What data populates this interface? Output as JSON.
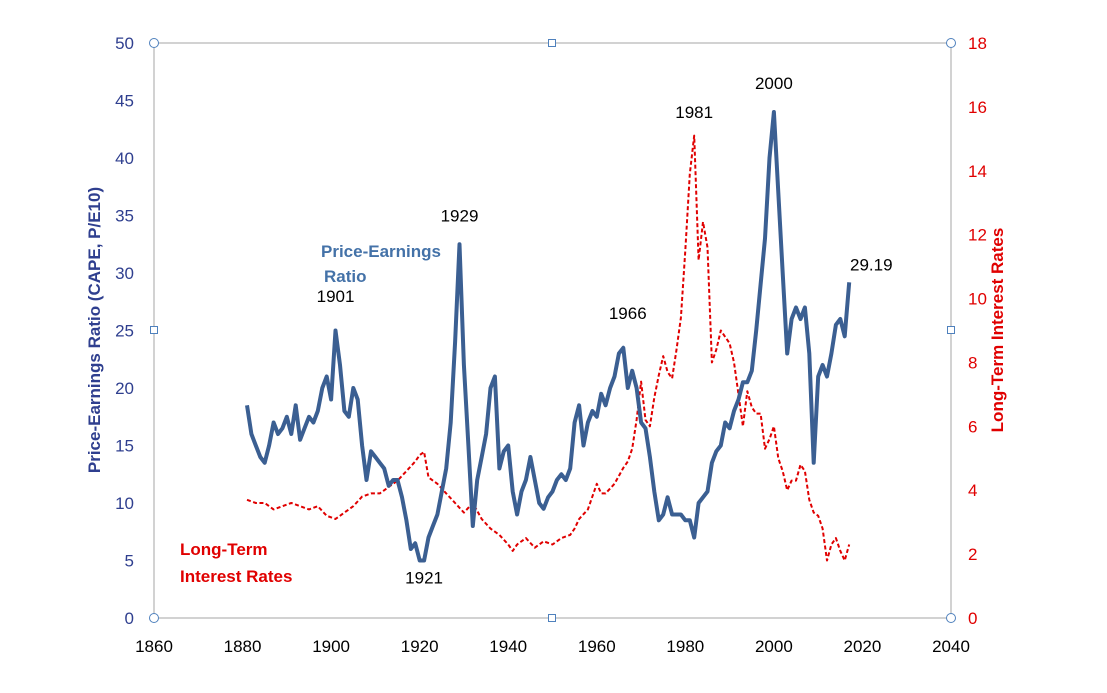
{
  "chart_data": {
    "type": "line",
    "xlim": [
      1860,
      2040
    ],
    "x_ticks": [
      1860,
      1880,
      1900,
      1920,
      1940,
      1960,
      1980,
      2000,
      2020,
      2040
    ],
    "y_left": {
      "label": "Price-Earnings Ratio (CAPE, P/E10)",
      "range": [
        0,
        50
      ],
      "ticks": [
        0,
        5,
        10,
        15,
        20,
        25,
        30,
        35,
        40,
        45,
        50
      ],
      "color": "#2f3f8f"
    },
    "y_right": {
      "label": "Long-Term Interest Rates",
      "range": [
        0,
        18
      ],
      "ticks": [
        0,
        2,
        4,
        6,
        8,
        10,
        12,
        14,
        16,
        18
      ],
      "color": "#e00000"
    },
    "grid": false,
    "series": [
      {
        "name": "Price-Earnings Ratio",
        "axis": "left",
        "color": "#3b5f92",
        "style": "solid",
        "x": [
          1881,
          1882,
          1883,
          1884,
          1885,
          1886,
          1887,
          1888,
          1889,
          1890,
          1891,
          1892,
          1893,
          1894,
          1895,
          1896,
          1897,
          1898,
          1899,
          1900,
          1901,
          1902,
          1903,
          1904,
          1905,
          1906,
          1907,
          1908,
          1909,
          1910,
          1911,
          1912,
          1913,
          1914,
          1915,
          1916,
          1917,
          1918,
          1919,
          1920,
          1921,
          1922,
          1923,
          1924,
          1925,
          1926,
          1927,
          1928,
          1929,
          1930,
          1931,
          1932,
          1933,
          1934,
          1935,
          1936,
          1937,
          1938,
          1939,
          1940,
          1941,
          1942,
          1943,
          1944,
          1945,
          1946,
          1947,
          1948,
          1949,
          1950,
          1951,
          1952,
          1953,
          1954,
          1955,
          1956,
          1957,
          1958,
          1959,
          1960,
          1961,
          1962,
          1963,
          1964,
          1965,
          1966,
          1967,
          1968,
          1969,
          1970,
          1971,
          1972,
          1973,
          1974,
          1975,
          1976,
          1977,
          1978,
          1979,
          1980,
          1981,
          1982,
          1983,
          1984,
          1985,
          1986,
          1987,
          1988,
          1989,
          1990,
          1991,
          1992,
          1993,
          1994,
          1995,
          1996,
          1997,
          1998,
          1999,
          2000,
          2001,
          2002,
          2003,
          2004,
          2005,
          2006,
          2007,
          2008,
          2009,
          2010,
          2011,
          2012,
          2013,
          2014,
          2015,
          2016,
          2017
        ],
        "values": [
          18.5,
          16,
          15,
          14,
          13.5,
          15,
          17,
          16,
          16.5,
          17.5,
          16,
          18.5,
          15.5,
          16.5,
          17.5,
          17,
          18,
          20,
          21,
          19,
          25,
          22,
          18,
          17.5,
          20,
          19,
          15,
          12,
          14.5,
          14,
          13.5,
          13,
          11.5,
          12,
          12,
          10.5,
          8.5,
          6,
          6.5,
          5,
          5,
          7,
          8,
          9,
          11,
          13,
          17,
          24,
          32.5,
          22,
          15,
          8,
          12,
          14,
          16,
          20,
          21,
          13,
          14.5,
          15,
          11,
          9,
          11,
          12,
          14,
          12,
          10,
          9.5,
          10.5,
          11,
          12,
          12.5,
          12,
          13,
          17,
          18.5,
          15,
          17,
          18,
          17.5,
          19.5,
          18.5,
          20,
          21,
          23,
          23.5,
          20,
          21.5,
          20,
          17,
          16.5,
          14,
          11,
          8.5,
          9,
          10.5,
          9,
          9,
          9,
          8.5,
          8.5,
          7,
          10,
          10.5,
          11,
          13.5,
          14.5,
          15,
          17,
          16.5,
          18,
          19,
          20.5,
          20.5,
          21.5,
          25,
          29,
          33,
          40,
          44,
          37,
          30,
          23,
          26,
          27,
          26,
          27,
          23,
          13.5,
          21,
          22,
          21,
          23,
          25.5,
          26,
          24.5,
          29.19
        ]
      },
      {
        "name": "Long-Term Interest Rates",
        "axis": "right",
        "color": "#e00000",
        "style": "dashed",
        "x": [
          1881,
          1883,
          1885,
          1887,
          1889,
          1891,
          1893,
          1895,
          1897,
          1899,
          1901,
          1903,
          1905,
          1907,
          1909,
          1911,
          1913,
          1915,
          1917,
          1919,
          1920,
          1921,
          1922,
          1924,
          1926,
          1928,
          1930,
          1932,
          1934,
          1936,
          1938,
          1940,
          1941,
          1942,
          1944,
          1946,
          1948,
          1950,
          1952,
          1954,
          1955,
          1956,
          1958,
          1960,
          1961,
          1962,
          1964,
          1966,
          1967,
          1968,
          1969,
          1970,
          1971,
          1972,
          1973,
          1974,
          1975,
          1976,
          1977,
          1978,
          1979,
          1980,
          1981,
          1982,
          1983,
          1984,
          1985,
          1986,
          1987,
          1988,
          1989,
          1990,
          1991,
          1992,
          1993,
          1994,
          1995,
          1996,
          1997,
          1998,
          1999,
          2000,
          2001,
          2002,
          2003,
          2004,
          2005,
          2006,
          2007,
          2008,
          2009,
          2010,
          2011,
          2012,
          2013,
          2014,
          2015,
          2016,
          2017
        ],
        "values": [
          3.7,
          3.6,
          3.6,
          3.4,
          3.5,
          3.6,
          3.5,
          3.4,
          3.5,
          3.2,
          3.1,
          3.3,
          3.5,
          3.8,
          3.9,
          3.9,
          4.1,
          4.3,
          4.6,
          4.9,
          5.1,
          5.2,
          4.4,
          4.2,
          3.9,
          3.6,
          3.3,
          3.6,
          3.1,
          2.8,
          2.6,
          2.3,
          2.1,
          2.3,
          2.5,
          2.2,
          2.4,
          2.3,
          2.5,
          2.6,
          2.8,
          3.1,
          3.4,
          4.2,
          3.9,
          3.9,
          4.2,
          4.7,
          4.9,
          5.3,
          6.2,
          7.4,
          6.2,
          6.0,
          6.9,
          7.6,
          8.2,
          7.7,
          7.5,
          8.4,
          9.4,
          11.5,
          13.9,
          15.1,
          11.2,
          12.4,
          11.6,
          8.0,
          8.4,
          9.0,
          8.8,
          8.6,
          8.0,
          7.0,
          6.0,
          7.1,
          6.6,
          6.4,
          6.4,
          5.3,
          5.6,
          6.0,
          5.0,
          4.6,
          4.0,
          4.3,
          4.3,
          4.8,
          4.6,
          3.7,
          3.3,
          3.2,
          2.8,
          1.8,
          2.3,
          2.5,
          2.1,
          1.8,
          2.3
        ]
      }
    ],
    "annotations": [
      {
        "text": "1901",
        "x": 1901,
        "y": 27.5,
        "axis": "left"
      },
      {
        "text": "1921",
        "x": 1921,
        "y": 3.0,
        "axis": "left"
      },
      {
        "text": "1929",
        "x": 1929,
        "y": 34.5,
        "axis": "left"
      },
      {
        "text": "1966",
        "x": 1967,
        "y": 26.0,
        "axis": "left"
      },
      {
        "text": "1981",
        "x": 1982,
        "y": 43.5,
        "axis": "left"
      },
      {
        "text": "2000",
        "x": 2000,
        "y": 46.0,
        "axis": "left"
      },
      {
        "text": "29.19",
        "x": 2022,
        "y": 30.2,
        "axis": "left"
      }
    ],
    "series_labels": {
      "pe_line1": "Price-Earnings",
      "pe_line2": "Ratio",
      "lr_line1": "Long-Term",
      "lr_line2": "Interest Rates"
    }
  }
}
